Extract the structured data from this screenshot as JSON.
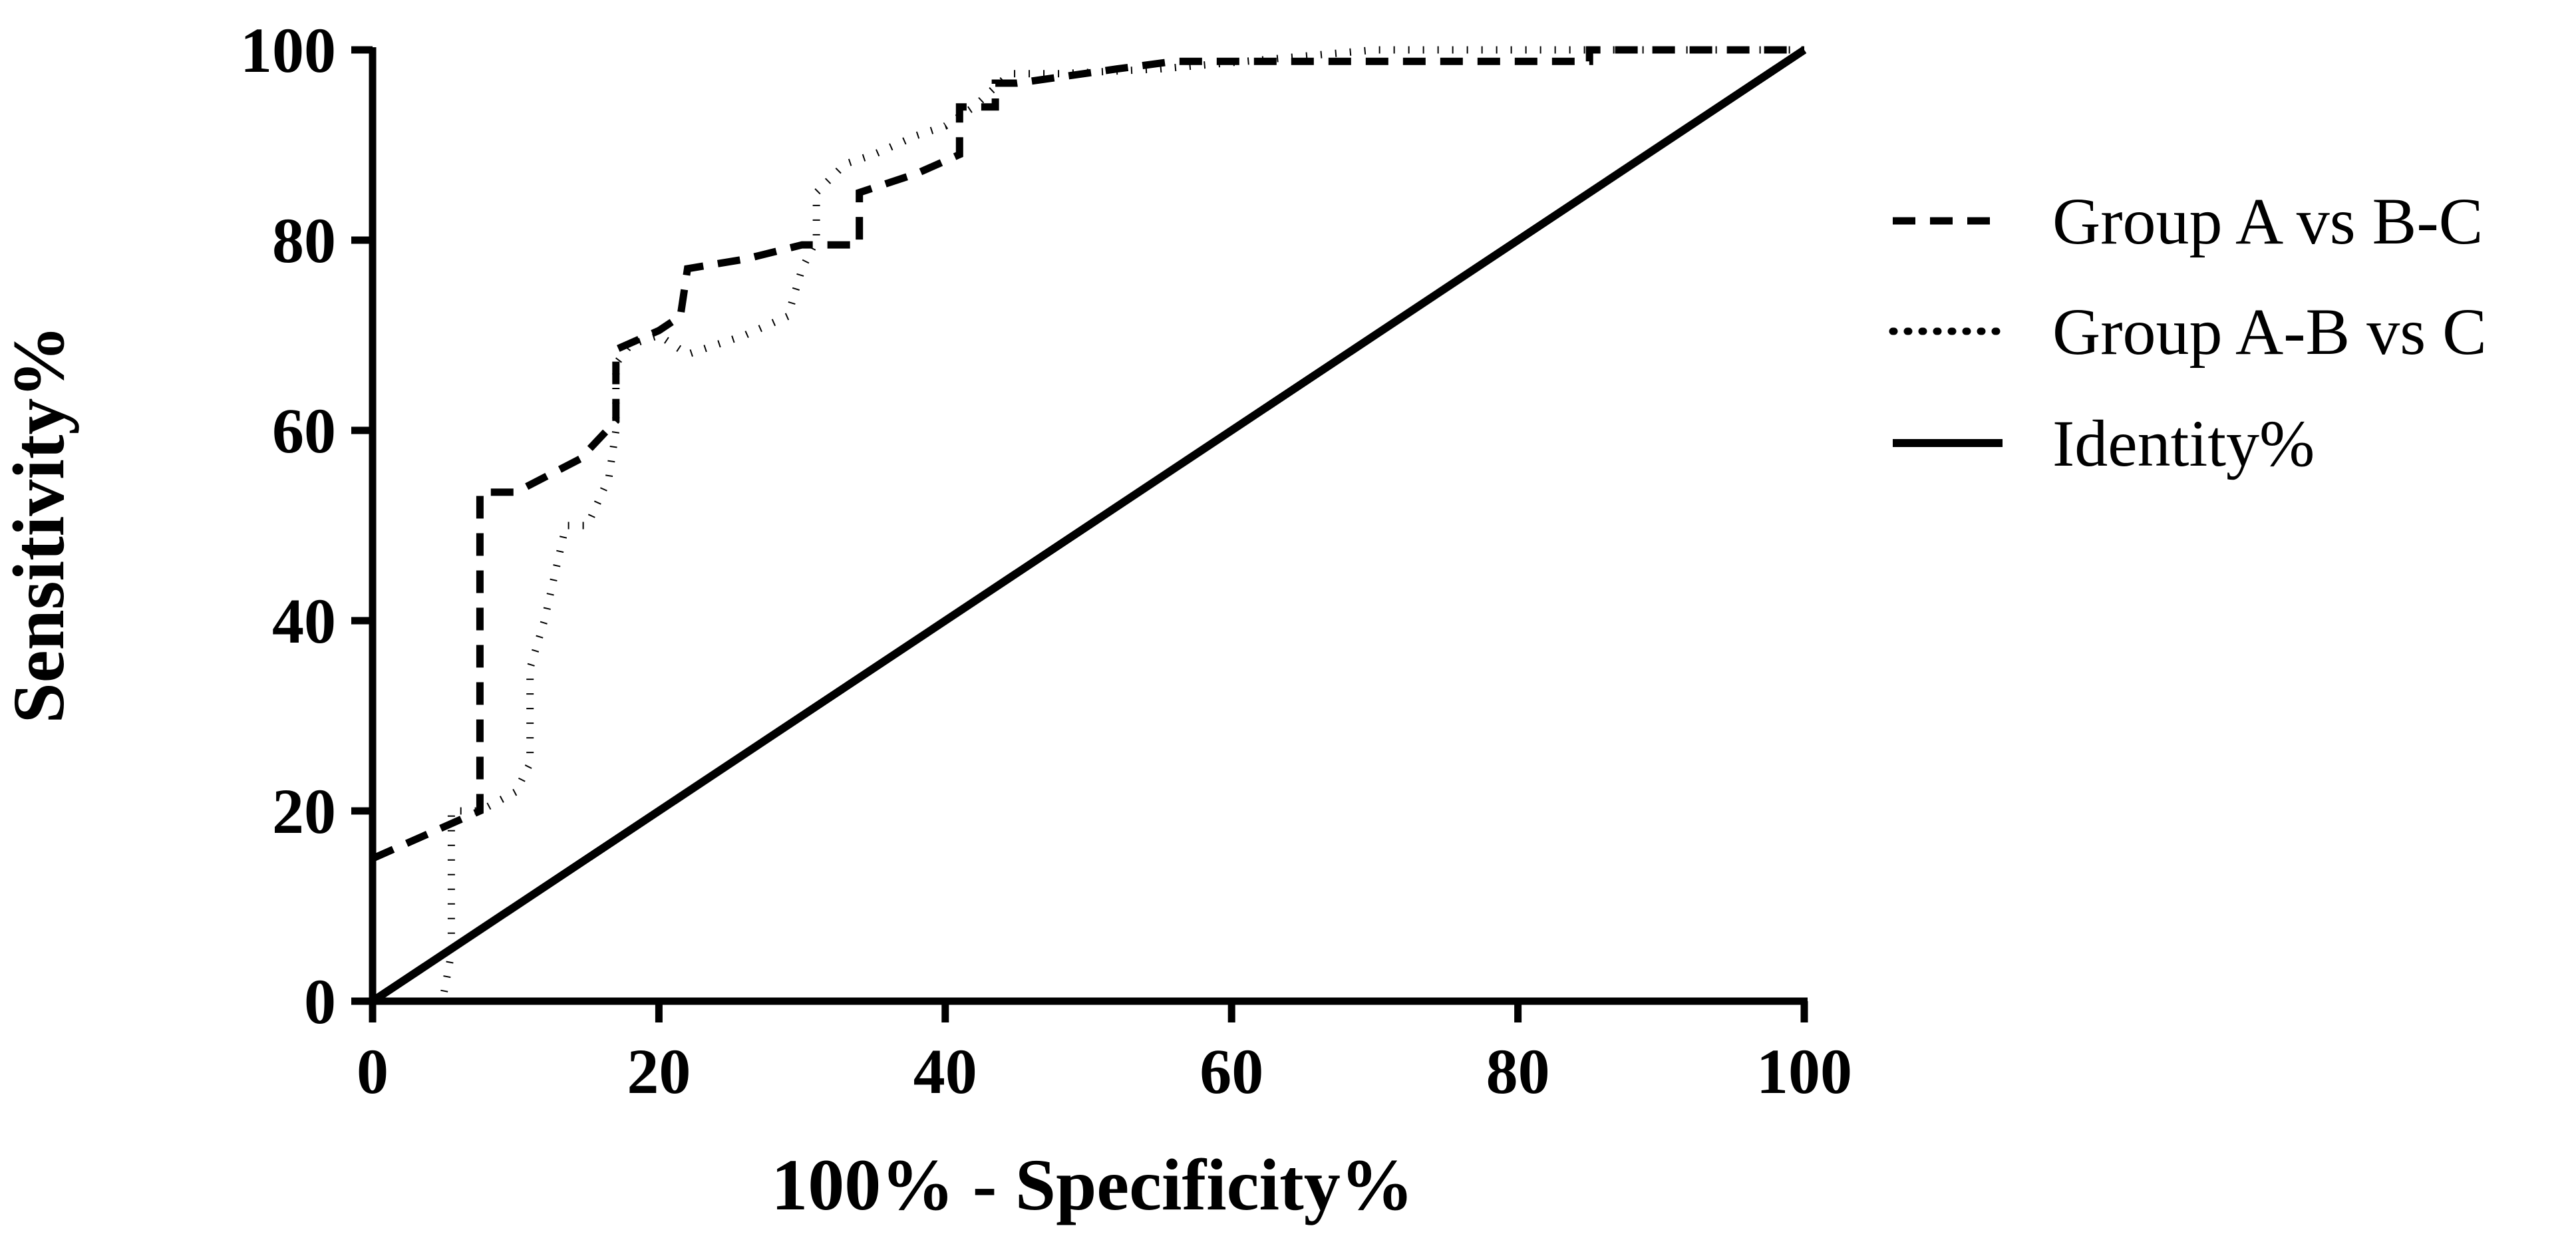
{
  "chart_data": {
    "type": "line",
    "title": "",
    "xlabel": "100% - Specificity%",
    "ylabel": "Sensitivity%",
    "xlim": [
      0,
      100
    ],
    "ylim": [
      0,
      100
    ],
    "x_ticks": [
      0,
      20,
      40,
      60,
      80,
      100
    ],
    "y_ticks": [
      0,
      20,
      40,
      60,
      80,
      100
    ],
    "x_tick_labels": [
      "0",
      "20",
      "40",
      "60",
      "80",
      "100"
    ],
    "y_tick_labels": [
      "0",
      "20",
      "40",
      "60",
      "80",
      "100"
    ],
    "grid": false,
    "legend_position": "right",
    "series": [
      {
        "name": "Group A vs B-C",
        "style": "dashed",
        "x": [
          0,
          7.5,
          7.5,
          10,
          14.5,
          17,
          17,
          20,
          21.5,
          22,
          26,
          30,
          34,
          34,
          38,
          41,
          41,
          43.5,
          43.5,
          45,
          52,
          56,
          62,
          66,
          85,
          85,
          100
        ],
        "y": [
          15,
          20,
          53.5,
          53.5,
          57,
          61,
          68.5,
          70.5,
          72,
          77,
          78,
          79.5,
          79.5,
          85,
          87,
          89,
          94,
          94,
          96.5,
          96.5,
          98,
          98.8,
          98.8,
          98.8,
          98.8,
          100,
          100
        ]
      },
      {
        "name": "Group A-B vs C",
        "style": "dotted",
        "x": [
          5,
          5.5,
          5.5,
          7.5,
          10,
          11,
          11,
          12,
          13.5,
          15,
          16.5,
          17,
          17,
          18,
          20,
          22,
          26,
          29,
          30,
          31,
          31,
          33,
          35,
          38,
          40,
          42,
          44.5,
          48,
          55,
          70,
          100
        ],
        "y": [
          1,
          5,
          20,
          20,
          22,
          25,
          35,
          40,
          50,
          50,
          55,
          60,
          67,
          69,
          70,
          68,
          70,
          72,
          77,
          80,
          85,
          88,
          89,
          91,
          92,
          94,
          97.5,
          97.5,
          98,
          100,
          100
        ]
      },
      {
        "name": "Identity%",
        "style": "solid",
        "x": [
          0,
          100
        ],
        "y": [
          0,
          100
        ]
      }
    ]
  }
}
